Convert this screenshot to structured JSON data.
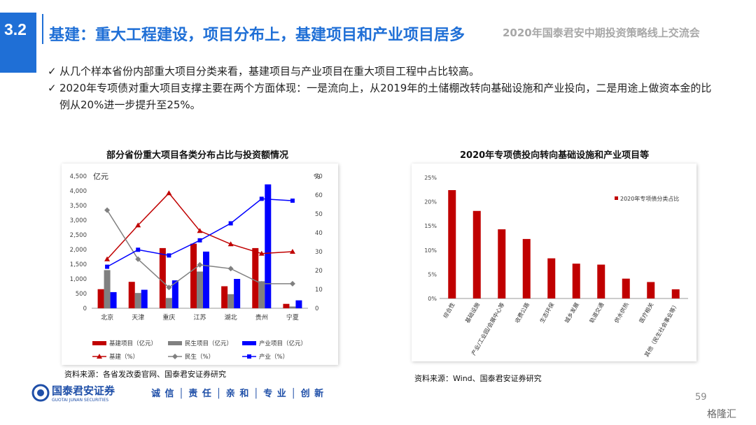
{
  "header": {
    "section": "3.2",
    "title": "基建：重大工程建设，项目分布上，基建项目和产业项目居多",
    "subtitle": "2020年国泰君安中期投资策略线上交流会"
  },
  "bullets": [
    {
      "check": "✓",
      "text": "从几个样本省份内部重大项目分类来看，基建项目与产业项目在重大项目工程中占比较高。"
    },
    {
      "check": "✓",
      "text": "2020年专项债对重大项目支撑主要在两个方面体现：一是流向上，从2019年的土储棚改转向基础设施和产业投向，二是用途上做资本金的比例从20%进一步提升至25%。"
    }
  ],
  "left_chart": {
    "title": "部分省份重大项目各类分布占比与投资额情况",
    "source": "资料来源：各省发改委官网、国泰君安证券研究"
  },
  "right_chart": {
    "title": "2020年专项债投向转向基础设施和产业项目等",
    "source": "资料来源：Wind、国泰君安证券研究"
  },
  "footer": {
    "logo_text": "国泰君安证券",
    "logo_sub": "GUOTAI JUNAN SECURITIES",
    "slogan": "诚 信 │ 责 任 │ 亲 和 │ 专 业 │ 创 新",
    "page": "59",
    "watermark": "格隆汇"
  },
  "chart_data": [
    {
      "type": "bar",
      "title": "部分省份重大项目各类分布占比与投资额情况",
      "categories": [
        "北京",
        "天津",
        "重庆",
        "江苏",
        "湖北",
        "贵州",
        "宁夏"
      ],
      "y_unit_label": "亿元",
      "y2_unit_label": "%",
      "ylim": [
        0,
        4500
      ],
      "yticks": [
        "0",
        "500",
        "1,000",
        "1,500",
        "2,000",
        "2,500",
        "3,000",
        "3,500",
        "4,000",
        "4,500"
      ],
      "y2lim": [
        0,
        70
      ],
      "y2ticks": [
        "0",
        "10",
        "20",
        "30",
        "40",
        "50",
        "60",
        "70"
      ],
      "series": [
        {
          "name": "基建项目（亿元）",
          "kind": "bar",
          "axis": "left",
          "color": "#c00000",
          "values": [
            650,
            900,
            2050,
            2200,
            750,
            2050,
            150
          ]
        },
        {
          "name": "民生项目（亿元）",
          "kind": "bar",
          "axis": "left",
          "color": "#808080",
          "values": [
            1300,
            520,
            350,
            1250,
            480,
            920,
            60
          ]
        },
        {
          "name": "产业项目（亿元）",
          "kind": "bar",
          "axis": "left",
          "color": "#0000ff",
          "values": [
            550,
            630,
            950,
            1930,
            1000,
            4220,
            270
          ]
        },
        {
          "name": "基建（%）",
          "kind": "line",
          "axis": "right",
          "color": "#c00000",
          "marker": "triangle",
          "values": [
            26,
            44,
            61,
            41,
            34,
            29,
            30
          ]
        },
        {
          "name": "民生（%）",
          "kind": "line",
          "axis": "right",
          "color": "#808080",
          "marker": "diamond",
          "values": [
            52,
            26,
            11,
            23,
            21,
            13,
            13
          ]
        },
        {
          "name": "产业（%）",
          "kind": "line",
          "axis": "right",
          "color": "#0000ff",
          "marker": "square",
          "values": [
            22,
            31,
            28,
            36,
            45,
            58,
            57
          ]
        }
      ],
      "legend": "bottom"
    },
    {
      "type": "bar",
      "title": "2020年专项债投向转向基础设施和产业项目等",
      "categories": [
        "综合性",
        "基础设施",
        "产业/工业园/会展中心等",
        "收费公路",
        "生态环保",
        "城乡发展",
        "轨道交通",
        "供水供热",
        "医疗相关",
        "其他（民生社会事业等）"
      ],
      "series": [
        {
          "name": "2020年专项债分类占比",
          "color": "#c00000",
          "values": [
            22.4,
            18.1,
            14.3,
            12.3,
            8.3,
            7.2,
            7.0,
            4.1,
            3.4,
            1.9
          ]
        }
      ],
      "ylim": [
        0,
        25
      ],
      "yticks": [
        "0%",
        "5%",
        "10%",
        "15%",
        "20%",
        "25%"
      ],
      "legend": "top-right"
    }
  ]
}
